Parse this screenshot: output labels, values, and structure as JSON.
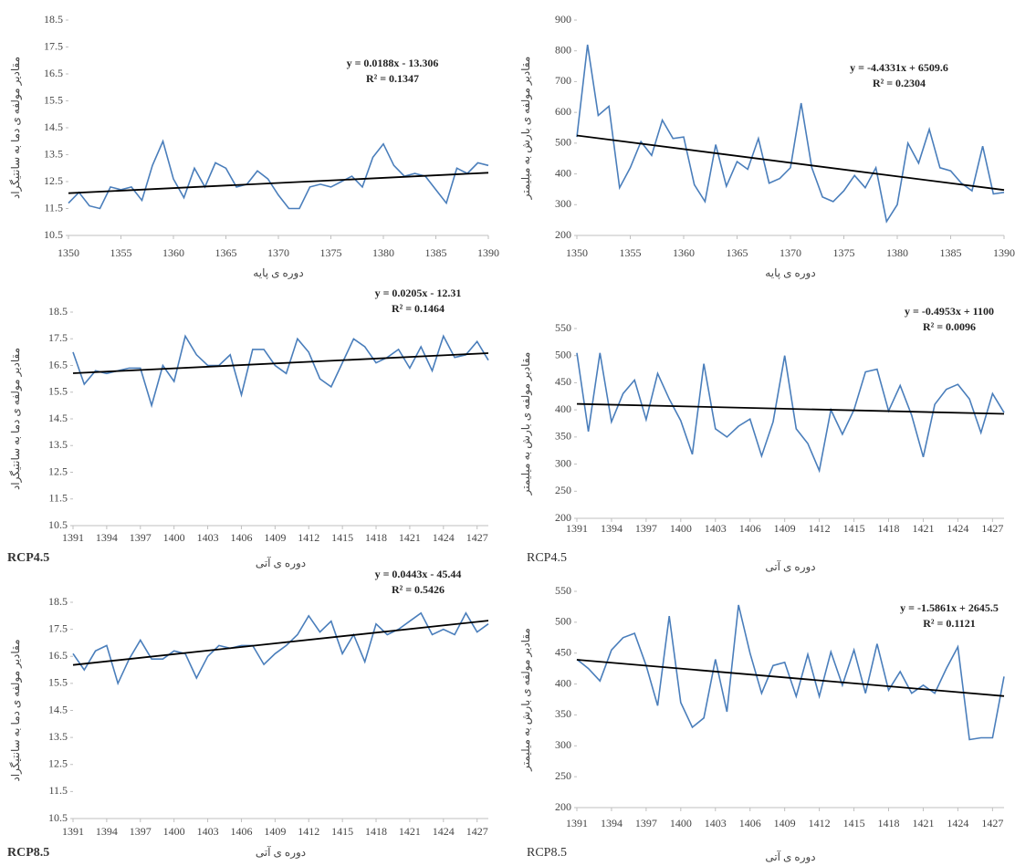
{
  "chart_data": [
    {
      "type": "line",
      "x_label": "دوره ی پایه",
      "y_label": "مقادیر مولفه ی دما به سانتیگراد",
      "trend_equation": "y = 0.0188x - 13.306",
      "r_squared": "R² = 0.1347",
      "x": [
        1350,
        1351,
        1352,
        1353,
        1354,
        1355,
        1356,
        1357,
        1358,
        1359,
        1360,
        1361,
        1362,
        1363,
        1364,
        1365,
        1366,
        1367,
        1368,
        1369,
        1370,
        1371,
        1372,
        1373,
        1374,
        1375,
        1376,
        1377,
        1378,
        1379,
        1380,
        1381,
        1382,
        1383,
        1384,
        1385,
        1386,
        1387,
        1388,
        1389,
        1390
      ],
      "values": [
        11.7,
        12.1,
        11.6,
        11.5,
        12.3,
        12.2,
        12.3,
        11.8,
        13.1,
        14.0,
        12.6,
        11.9,
        13.0,
        12.3,
        13.2,
        13.0,
        12.3,
        12.4,
        12.9,
        12.6,
        12.0,
        11.5,
        11.5,
        12.3,
        12.4,
        12.3,
        12.5,
        12.7,
        12.3,
        13.4,
        13.9,
        13.1,
        12.7,
        12.8,
        12.7,
        12.2,
        11.7,
        13.0,
        12.8,
        13.2,
        13.1
      ],
      "color": "#4a7ebb",
      "trend": {
        "x": [
          1350,
          1390
        ],
        "values": [
          12.07,
          12.83
        ],
        "color": "#000000"
      },
      "xlim": [
        1350,
        1390
      ],
      "xticks": [
        1350,
        1355,
        1360,
        1365,
        1370,
        1375,
        1380,
        1385,
        1390
      ],
      "ylim": [
        10.5,
        18.5
      ],
      "yticks": [
        10.5,
        11.5,
        12.5,
        13.5,
        14.5,
        15.5,
        16.5,
        17.5,
        18.5
      ]
    },
    {
      "type": "line",
      "x_label": "دوره ی پایه",
      "y_label": "مقادیر مولفه ی بارش به میلیمتر",
      "trend_equation": "y = -4.4331x + 6509.6",
      "r_squared": "R² = 0.2304",
      "x": [
        1350,
        1351,
        1352,
        1353,
        1354,
        1355,
        1356,
        1357,
        1358,
        1359,
        1360,
        1361,
        1362,
        1363,
        1364,
        1365,
        1366,
        1367,
        1368,
        1369,
        1370,
        1371,
        1372,
        1373,
        1374,
        1375,
        1376,
        1377,
        1378,
        1379,
        1380,
        1381,
        1382,
        1383,
        1384,
        1385,
        1386,
        1387,
        1388,
        1389,
        1390
      ],
      "values": [
        520,
        820,
        590,
        620,
        355,
        420,
        505,
        460,
        575,
        515,
        520,
        365,
        310,
        495,
        360,
        440,
        415,
        515,
        370,
        385,
        420,
        630,
        420,
        325,
        310,
        345,
        395,
        355,
        420,
        245,
        300,
        500,
        435,
        545,
        420,
        410,
        370,
        345,
        490,
        335,
        340
      ],
      "color": "#4a7ebb",
      "trend": {
        "x": [
          1350,
          1390
        ],
        "values": [
          524.9,
          347.6
        ],
        "color": "#000000"
      },
      "xlim": [
        1350,
        1390
      ],
      "xticks": [
        1350,
        1355,
        1360,
        1365,
        1370,
        1375,
        1380,
        1385,
        1390
      ],
      "ylim": [
        200,
        900
      ],
      "yticks": [
        200,
        300,
        400,
        500,
        600,
        700,
        800,
        900
      ]
    },
    {
      "type": "line",
      "scenario": "RCP4.5",
      "x_label": "دوره ی آتی",
      "y_label": "مقادیر مولفه ی دما به سانتیگراد",
      "trend_equation": "y = 0.0205x - 12.31",
      "r_squared": "R² = 0.1464",
      "x": [
        1391,
        1392,
        1393,
        1394,
        1395,
        1396,
        1397,
        1398,
        1399,
        1400,
        1401,
        1402,
        1403,
        1404,
        1405,
        1406,
        1407,
        1408,
        1409,
        1410,
        1411,
        1412,
        1413,
        1414,
        1415,
        1416,
        1417,
        1418,
        1419,
        1420,
        1421,
        1422,
        1423,
        1424,
        1425,
        1426,
        1427,
        1428
      ],
      "values": [
        17.0,
        15.8,
        16.3,
        16.2,
        16.3,
        16.4,
        16.4,
        15.0,
        16.5,
        15.9,
        17.6,
        16.9,
        16.5,
        16.5,
        16.9,
        15.4,
        17.1,
        17.1,
        16.5,
        16.2,
        17.5,
        17.0,
        16.0,
        15.7,
        16.6,
        17.5,
        17.2,
        16.6,
        16.8,
        17.1,
        16.4,
        17.2,
        16.3,
        17.6,
        16.8,
        16.9,
        17.4,
        16.7
      ],
      "color": "#4a7ebb",
      "trend": {
        "x": [
          1391,
          1428
        ],
        "values": [
          16.21,
          16.96
        ],
        "color": "#000000"
      },
      "xlim": [
        1391,
        1428
      ],
      "xticks": [
        1391,
        1394,
        1397,
        1400,
        1403,
        1406,
        1409,
        1412,
        1415,
        1418,
        1421,
        1424,
        1427
      ],
      "ylim": [
        10.5,
        18.5
      ],
      "yticks": [
        10.5,
        11.5,
        12.5,
        13.5,
        14.5,
        15.5,
        16.5,
        17.5,
        18.5
      ]
    },
    {
      "type": "line",
      "scenario": "RCP4.5",
      "x_label": "دوره ی آتی",
      "y_label": "مقادیر مولفه ی بارش به میلیمتر",
      "trend_equation": "y = -0.4953x + 1100",
      "r_squared": "R² = 0.0096",
      "x": [
        1391,
        1392,
        1393,
        1394,
        1395,
        1396,
        1397,
        1398,
        1399,
        1400,
        1401,
        1402,
        1403,
        1404,
        1405,
        1406,
        1407,
        1408,
        1409,
        1410,
        1411,
        1412,
        1413,
        1414,
        1415,
        1416,
        1417,
        1418,
        1419,
        1420,
        1421,
        1422,
        1423,
        1424,
        1425,
        1426,
        1427,
        1428
      ],
      "values": [
        505,
        360,
        505,
        378,
        430,
        455,
        382,
        467,
        420,
        380,
        318,
        485,
        365,
        350,
        370,
        383,
        315,
        378,
        500,
        365,
        338,
        288,
        400,
        355,
        400,
        470,
        475,
        398,
        445,
        390,
        313,
        410,
        438,
        447,
        420,
        358,
        430,
        395
      ],
      "color": "#4a7ebb",
      "trend": {
        "x": [
          1391,
          1428
        ],
        "values": [
          411.0,
          392.7
        ],
        "color": "#000000"
      },
      "xlim": [
        1391,
        1428
      ],
      "xticks": [
        1391,
        1394,
        1397,
        1400,
        1403,
        1406,
        1409,
        1412,
        1415,
        1418,
        1421,
        1424,
        1427
      ],
      "ylim": [
        200,
        550
      ],
      "yticks": [
        200,
        250,
        300,
        350,
        400,
        450,
        500,
        550
      ]
    },
    {
      "type": "line",
      "scenario": "RCP8.5",
      "x_label": "دوره ی آتی",
      "y_label": "مقادیر مولفه ی دما به سانتیگراد",
      "trend_equation": "y = 0.0443x - 45.44",
      "r_squared": "R² = 0.5426",
      "x": [
        1391,
        1392,
        1393,
        1394,
        1395,
        1396,
        1397,
        1398,
        1399,
        1400,
        1401,
        1402,
        1403,
        1404,
        1405,
        1406,
        1407,
        1408,
        1409,
        1410,
        1411,
        1412,
        1413,
        1414,
        1415,
        1416,
        1417,
        1418,
        1419,
        1420,
        1421,
        1422,
        1423,
        1424,
        1425,
        1426,
        1427,
        1428
      ],
      "values": [
        16.6,
        16.0,
        16.7,
        16.9,
        15.5,
        16.4,
        17.1,
        16.4,
        16.4,
        16.7,
        16.6,
        15.7,
        16.5,
        16.9,
        16.8,
        16.9,
        16.9,
        16.2,
        16.6,
        16.9,
        17.3,
        18.0,
        17.4,
        17.8,
        16.6,
        17.3,
        16.3,
        17.7,
        17.3,
        17.5,
        17.8,
        18.1,
        17.3,
        17.5,
        17.3,
        18.1,
        17.4,
        17.7
      ],
      "color": "#4a7ebb",
      "trend": {
        "x": [
          1391,
          1428
        ],
        "values": [
          16.18,
          17.82
        ],
        "color": "#000000"
      },
      "xlim": [
        1391,
        1428
      ],
      "xticks": [
        1391,
        1394,
        1397,
        1400,
        1403,
        1406,
        1409,
        1412,
        1415,
        1418,
        1421,
        1424,
        1427
      ],
      "ylim": [
        10.5,
        18.5
      ],
      "yticks": [
        10.5,
        11.5,
        12.5,
        13.5,
        14.5,
        15.5,
        16.5,
        17.5,
        18.5
      ]
    },
    {
      "type": "line",
      "scenario": "RCP8.5",
      "x_label": "دوره ی آتی",
      "y_label": "مقادیر مولفه ی بارش به میلیمتر",
      "trend_equation": "y = -1.5861x + 2645.5",
      "r_squared": "R² = 0.1121",
      "x": [
        1391,
        1392,
        1393,
        1394,
        1395,
        1396,
        1397,
        1398,
        1399,
        1400,
        1401,
        1402,
        1403,
        1404,
        1405,
        1406,
        1407,
        1408,
        1409,
        1410,
        1411,
        1412,
        1413,
        1414,
        1415,
        1416,
        1417,
        1418,
        1419,
        1420,
        1421,
        1422,
        1423,
        1424,
        1425,
        1426,
        1427,
        1428
      ],
      "values": [
        440,
        425,
        405,
        455,
        475,
        482,
        430,
        365,
        510,
        370,
        330,
        345,
        440,
        355,
        528,
        450,
        385,
        430,
        435,
        380,
        448,
        380,
        452,
        398,
        455,
        385,
        465,
        390,
        420,
        385,
        398,
        385,
        425,
        460,
        310,
        313,
        313,
        412
      ],
      "color": "#4a7ebb",
      "trend": {
        "x": [
          1391,
          1428
        ],
        "values": [
          439.2,
          380.5
        ],
        "color": "#000000"
      },
      "xlim": [
        1391,
        1428
      ],
      "xticks": [
        1391,
        1394,
        1397,
        1400,
        1403,
        1406,
        1409,
        1412,
        1415,
        1418,
        1421,
        1424,
        1427
      ],
      "ylim": [
        200,
        550
      ],
      "yticks": [
        200,
        250,
        300,
        350,
        400,
        450,
        500,
        550
      ]
    }
  ]
}
